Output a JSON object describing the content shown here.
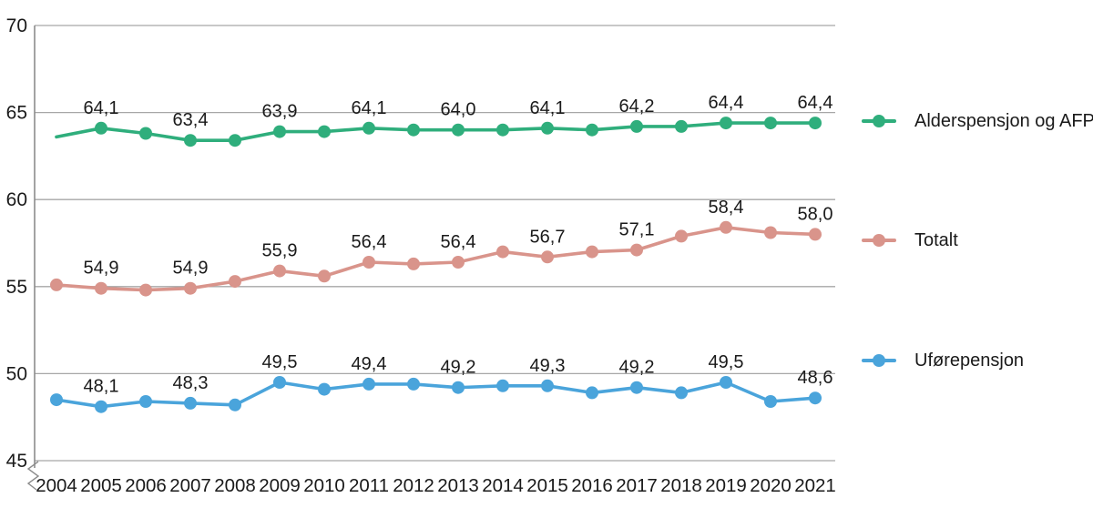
{
  "chart_data": {
    "type": "line",
    "title": "",
    "xlabel": "",
    "ylabel": "",
    "x": [
      "2004",
      "2005",
      "2006",
      "2007",
      "2008",
      "2009",
      "2010",
      "2011",
      "2012",
      "2013",
      "2014",
      "2015",
      "2016",
      "2017",
      "2018",
      "2019",
      "2020",
      "2021"
    ],
    "ylim": [
      45,
      70
    ],
    "yticks": [
      45,
      50,
      55,
      60,
      65,
      70
    ],
    "grid": "horizontal",
    "axis_break_at_origin": true,
    "decimal_separator": ",",
    "legend_position": "right",
    "series": [
      {
        "name": "Alderspensjon og AFP",
        "color": "#2FAE7C",
        "first_marker": false,
        "values": [
          63.6,
          64.1,
          63.8,
          63.4,
          63.4,
          63.9,
          63.9,
          64.1,
          64.0,
          64.0,
          64.0,
          64.1,
          64.0,
          64.2,
          64.2,
          64.4,
          64.4,
          64.4
        ],
        "point_labels": [
          "",
          "64,1",
          "",
          "63,4",
          "",
          "63,9",
          "",
          "64,1",
          "",
          "64,0",
          "",
          "64,1",
          "",
          "64,2",
          "",
          "64,4",
          "",
          "64,4"
        ]
      },
      {
        "name": "Totalt",
        "color": "#D9948B",
        "first_marker": true,
        "values": [
          55.1,
          54.9,
          54.8,
          54.9,
          55.3,
          55.9,
          55.6,
          56.4,
          56.3,
          56.4,
          57.0,
          56.7,
          57.0,
          57.1,
          57.9,
          58.4,
          58.1,
          58.0
        ],
        "point_labels": [
          "",
          "54,9",
          "",
          "54,9",
          "",
          "55,9",
          "",
          "56,4",
          "",
          "56,4",
          "",
          "56,7",
          "",
          "57,1",
          "",
          "58,4",
          "",
          "58,0"
        ]
      },
      {
        "name": "Uførepensjon",
        "color": "#4AA4DB",
        "first_marker": true,
        "values": [
          48.5,
          48.1,
          48.4,
          48.3,
          48.2,
          49.5,
          49.1,
          49.4,
          49.4,
          49.2,
          49.3,
          49.3,
          48.9,
          49.2,
          48.9,
          49.5,
          48.4,
          48.6
        ],
        "point_labels": [
          "",
          "48,1",
          "",
          "48,3",
          "",
          "49,5",
          "",
          "49,4",
          "",
          "49,2",
          "",
          "49,3",
          "",
          "49,2",
          "",
          "49,5",
          "",
          "48,6"
        ]
      }
    ],
    "colors": {
      "gridline": "#A7A7A7",
      "axis": "#8C8C8C",
      "text": "#1A1A1A"
    }
  }
}
